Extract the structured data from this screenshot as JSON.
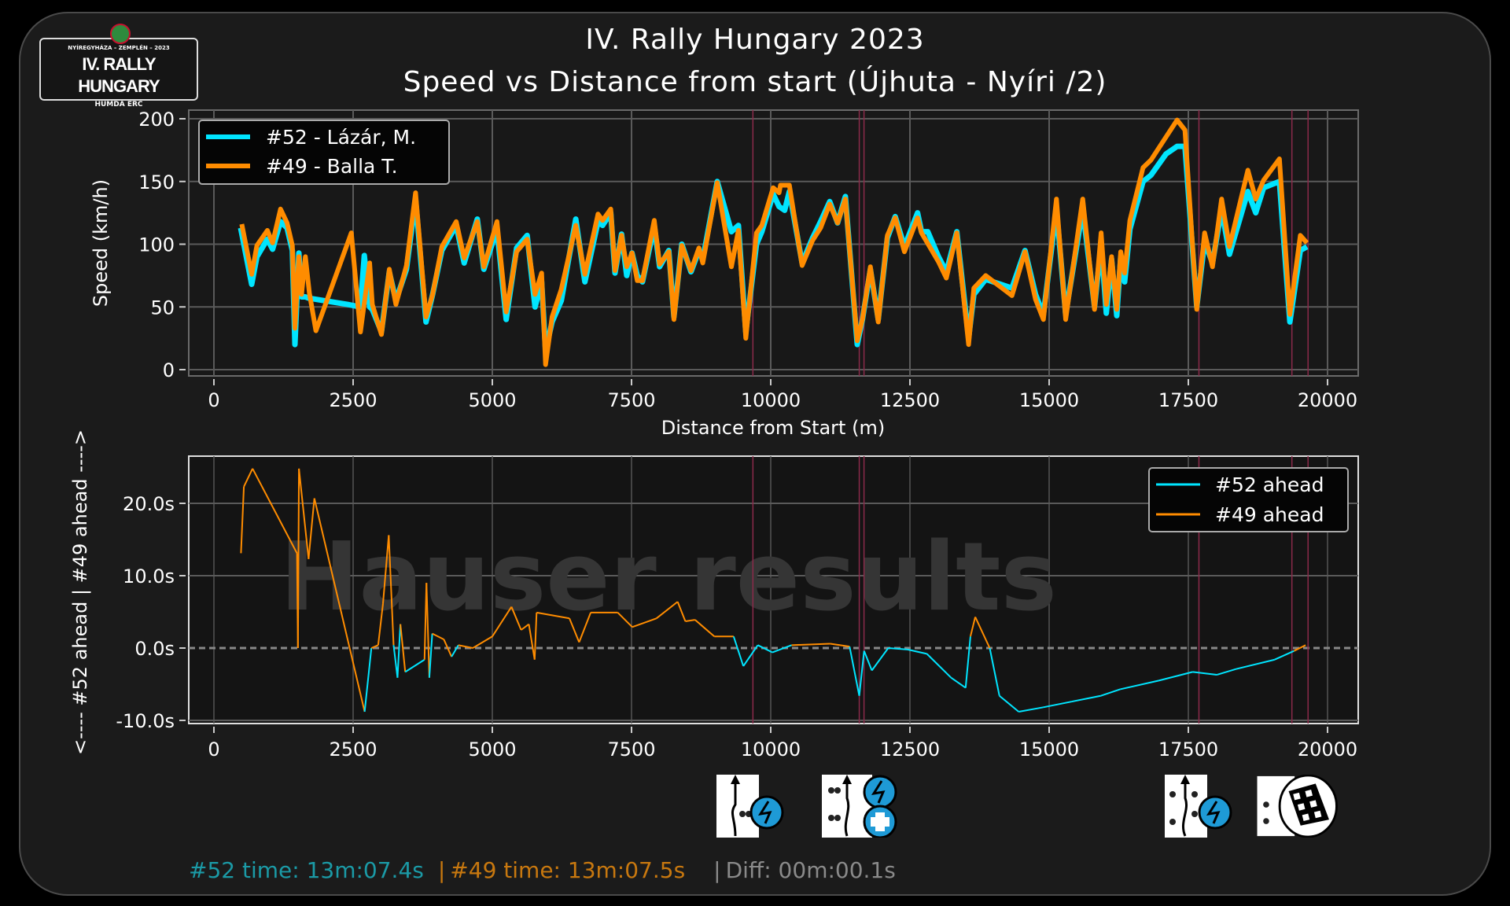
{
  "logo": {
    "line1": "NYÍREGYHÁZA – ZEMPLÉN – 2023",
    "line2": "IV. RALLY HUNGARY",
    "line3": "HUMDA  ERC"
  },
  "watermark": "Hauser results",
  "title_line1": "IV. Rally Hungary 2023",
  "title_line2": "Speed vs Distance from start (Újhuta - Nyíri /2)",
  "colors": {
    "car52": "#00e5ff",
    "car49": "#ff8c00",
    "marker": "#8b2a4a",
    "background": "#1b1b1b"
  },
  "chart_data": [
    {
      "type": "line",
      "xlabel": "Distance from Start (m)",
      "ylabel": "Speed (km/h)",
      "xlim": [
        -1000,
        21000
      ],
      "ylim": [
        -5,
        205
      ],
      "grid": true,
      "legend": "top-left",
      "xticks": [
        "0",
        "2500",
        "5000",
        "7500",
        "10000",
        "12500",
        "15000",
        "17500",
        "20000"
      ],
      "yticks": [
        "0",
        "50",
        "100",
        "150",
        "200"
      ],
      "markers_m": [
        9680,
        11590,
        11675,
        17690,
        19360,
        19650
      ],
      "series": [
        {
          "name": "#52 - Lázár, M.",
          "color": "#00e5ff",
          "x": [
            480,
            678,
            772,
            960,
            1054,
            1196,
            1314,
            1408,
            1455,
            1525,
            1573,
            1643,
            1700,
            2400,
            2632,
            2700,
            2797,
            2844,
            3009,
            3150,
            3268,
            3457,
            3622,
            3810,
            3928,
            4093,
            4352,
            4494,
            4730,
            4848,
            5084,
            5249,
            5437,
            5626,
            5767,
            5885,
            5956,
            6074,
            6239,
            6498,
            6663,
            6899,
            6980,
            7127,
            7203,
            7320,
            7414,
            7508,
            7603,
            7697,
            7908,
            8004,
            8169,
            8262,
            8402,
            8568,
            8710,
            8780,
            9039,
            9294,
            9420,
            9552,
            9745,
            9840,
            10044,
            10150,
            10250,
            10335,
            10564,
            10751,
            10895,
            11059,
            11200,
            11341,
            11553,
            11647,
            11790,
            11931,
            12095,
            12236,
            12401,
            12637,
            12707,
            12820,
            13013,
            13154,
            13342,
            13554,
            13649,
            13860,
            14332,
            14567,
            14755,
            14897,
            15132,
            15297,
            15603,
            15815,
            15933,
            16027,
            16121,
            16215,
            16285,
            16356,
            16450,
            16686,
            16827,
            17100,
            17298,
            17439,
            17651,
            17792,
            17933,
            18098,
            18239,
            18569,
            18710,
            18852,
            19135,
            19324,
            19512,
            19630
          ],
          "y": [
            113,
            68,
            90,
            104,
            96,
            118,
            113,
            95,
            20,
            93,
            58,
            58,
            57,
            52,
            50,
            91,
            50,
            48,
            30,
            78,
            55,
            80,
            136,
            38,
            60,
            95,
            115,
            85,
            120,
            80,
            112,
            40,
            97,
            107,
            50,
            70,
            15,
            38,
            55,
            120,
            70,
            118,
            115,
            125,
            77,
            108,
            75,
            93,
            75,
            70,
            115,
            82,
            95,
            42,
            100,
            78,
            95,
            88,
            150,
            110,
            115,
            30,
            100,
            110,
            140,
            130,
            127,
            142,
            85,
            105,
            118,
            134,
            117,
            138,
            20,
            40,
            80,
            40,
            105,
            122,
            98,
            125,
            110,
            110,
            90,
            78,
            110,
            25,
            60,
            72,
            65,
            95,
            60,
            44,
            128,
            44,
            128,
            50,
            100,
            45,
            88,
            43,
            90,
            70,
            112,
            150,
            155,
            172,
            178,
            178,
            50,
            102,
            85,
            128,
            92,
            142,
            125,
            145,
            150,
            38,
            95,
            98
          ]
        },
        {
          "name": "#49 - Balla T.",
          "color": "#ff8c00",
          "x": [
            500,
            678,
            772,
            960,
            1054,
            1196,
            1314,
            1408,
            1455,
            1525,
            1573,
            1643,
            1714,
            1832,
            2467,
            2632,
            2797,
            2844,
            3009,
            3150,
            3268,
            3457,
            3622,
            3810,
            3928,
            4093,
            4352,
            4494,
            4730,
            4848,
            5084,
            5249,
            5437,
            5626,
            5767,
            5885,
            5956,
            6074,
            6239,
            6498,
            6663,
            6899,
            6980,
            7127,
            7203,
            7320,
            7414,
            7508,
            7603,
            7697,
            7908,
            8004,
            8169,
            8262,
            8402,
            8568,
            8710,
            8780,
            9039,
            9294,
            9420,
            9552,
            9745,
            9840,
            10044,
            10150,
            10175,
            10335,
            10564,
            10751,
            10895,
            11059,
            11200,
            11341,
            11553,
            11647,
            11790,
            11931,
            12095,
            12236,
            12401,
            12637,
            12707,
            13013,
            13154,
            13342,
            13554,
            13649,
            13860,
            14332,
            14567,
            14755,
            14897,
            15132,
            15297,
            15603,
            15815,
            15933,
            16027,
            16121,
            16215,
            16285,
            16356,
            16450,
            16686,
            16827,
            17298,
            17439,
            17651,
            17792,
            17933,
            18098,
            18239,
            18569,
            18710,
            18852,
            19135,
            19324,
            19512,
            19630
          ],
          "y": [
            116,
            76,
            99,
            111,
            101,
            128,
            117,
            99,
            33,
            90,
            60,
            90,
            61,
            31,
            109,
            30,
            85,
            52,
            28,
            80,
            52,
            83,
            141,
            42,
            60,
            98,
            118,
            89,
            118,
            82,
            118,
            46,
            94,
            104,
            60,
            77,
            4,
            42,
            64,
            115,
            76,
            124,
            119,
            128,
            79,
            107,
            82,
            93,
            71,
            71,
            119,
            84,
            94,
            40,
            99,
            79,
            97,
            85,
            149,
            82,
            111,
            25,
            109,
            115,
            145,
            141,
            147,
            147,
            83,
            103,
            113,
            132,
            117,
            136,
            23,
            40,
            82,
            38,
            107,
            121,
            94,
            121,
            109,
            86,
            73,
            109,
            20,
            65,
            75,
            59,
            94,
            56,
            40,
            136,
            40,
            136,
            48,
            109,
            52,
            90,
            48,
            94,
            77,
            119,
            161,
            167,
            199,
            191,
            48,
            109,
            82,
            136,
            98,
            159,
            136,
            151,
            168,
            44,
            107,
            101
          ]
        }
      ]
    },
    {
      "type": "line",
      "ylabel": "<---- #52 ahead | #49 ahead ---->",
      "xlim": [
        -1000,
        21000
      ],
      "ylim": [
        -10.5,
        26
      ],
      "grid": true,
      "legend": "top-right",
      "legend_entries": [
        "#52 ahead",
        "#49 ahead"
      ],
      "xticks": [
        "0",
        "2500",
        "5000",
        "7500",
        "10000",
        "12500",
        "15000",
        "17500",
        "20000"
      ],
      "yticks": [
        "-10.0s",
        "0.0s",
        "10.0s",
        "20.0s"
      ],
      "ytick_values": [
        -10,
        0,
        10,
        20
      ],
      "x": [
        486,
        538,
        694,
        1492,
        1509,
        1527,
        1700,
        1804,
        2707,
        2828,
        2950,
        3036,
        3140,
        3227,
        3297,
        3349,
        3436,
        3782,
        3817,
        3869,
        3921,
        4129,
        4268,
        4390,
        4650,
        5000,
        5344,
        5517,
        5656,
        5760,
        5795,
        6385,
        6559,
        6767,
        7253,
        7513,
        7947,
        8328,
        8467,
        8641,
        8987,
        9334,
        9508,
        9768,
        10028,
        10375,
        11069,
        11416,
        11590,
        11677,
        11816,
        12111,
        12458,
        12805,
        13239,
        13500,
        13587,
        13673,
        13933,
        14107,
        14454,
        14888,
        15408,
        15929,
        16276,
        16970,
        17577,
        18010,
        18357,
        19051,
        19398,
        19606
      ],
      "y": [
        13.1,
        22.3,
        24.8,
        13.1,
        0,
        24.8,
        12.3,
        20.7,
        -8.8,
        0,
        0.4,
        6.1,
        15.6,
        0.4,
        -4.1,
        3.3,
        -3.3,
        -1.6,
        9.0,
        -4.1,
        2.0,
        1.2,
        -1.2,
        0.4,
        0,
        1.6,
        5.7,
        2.5,
        3.3,
        -1.6,
        4.9,
        4.1,
        0.8,
        4.9,
        4.9,
        2.9,
        4.1,
        6.4,
        3.7,
        3.9,
        1.6,
        1.6,
        -2.5,
        0.4,
        -0.6,
        0.4,
        0.6,
        0.2,
        -6.6,
        -0.4,
        -3.1,
        0,
        -0.2,
        -0.8,
        -4.1,
        -5.5,
        1.6,
        4.3,
        0,
        -6.6,
        -8.8,
        -8.2,
        -7.4,
        -6.6,
        -5.7,
        -4.5,
        -3.3,
        -3.7,
        -2.9,
        -1.6,
        -0.4,
        0.4
      ]
    }
  ],
  "footer": {
    "car52": "#52 time: 13m:07.4s",
    "car49": "#49 time: 13m:07.5s",
    "diff": "Diff: 00m:00.1s",
    "separator": "|"
  }
}
